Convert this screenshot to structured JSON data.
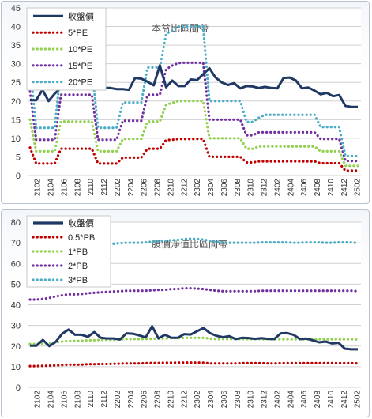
{
  "chart_data": [
    {
      "type": "line",
      "title": "本益比區間帶",
      "ylim": [
        0,
        45
      ],
      "yticks": [
        0,
        5,
        10,
        15,
        20,
        25,
        30,
        35,
        40,
        45
      ],
      "grid": true,
      "legend_placement": "top-left",
      "x_tick_labels": [
        "2102",
        "2104",
        "2106",
        "2108",
        "2110",
        "2112",
        "2202",
        "2204",
        "2206",
        "2208",
        "2210",
        "2212",
        "2302",
        "2304",
        "2306",
        "2308",
        "2310",
        "2312",
        "2402",
        "2404",
        "2406",
        "2408",
        "2410",
        "2412",
        "2502"
      ],
      "series": [
        {
          "name": "收盤價",
          "color": "#1f3864",
          "style": "solid",
          "values": [
            20.2,
            20.2,
            23,
            20,
            22,
            23.5,
            25.8,
            26.2,
            25.8,
            25.6,
            24.5,
            23.5,
            23.5,
            23.5,
            23.2,
            23.2,
            23,
            26.2,
            26,
            25.2,
            24.2,
            29.6,
            23.7,
            25.5,
            24,
            24,
            25.8,
            25.6,
            27.2,
            28.8,
            26.3,
            25,
            24.3,
            24.8,
            23.4,
            24,
            23.9,
            23.5,
            23.8,
            23.5,
            23.4,
            26.2,
            26.3,
            25.5,
            23.4,
            23.6,
            22.8,
            21.8,
            22.2,
            21.3,
            21.6,
            18.7,
            18.4,
            18.4
          ]
        },
        {
          "name": "5*PE",
          "color": "#c00000",
          "style": "dotted",
          "values": [
            7.5,
            3.2,
            3.2,
            3.2,
            3.2,
            7.2,
            7.2,
            7.2,
            7.2,
            7.2,
            7.2,
            3.2,
            3.2,
            3.2,
            3.2,
            4.8,
            4.8,
            4.8,
            4.8,
            7.2,
            7.2,
            7.2,
            9.5,
            9.6,
            9.8,
            9.8,
            9.8,
            9.8,
            9.8,
            5,
            5,
            5,
            5,
            5,
            5,
            3.5,
            3.5,
            3.8,
            3.8,
            3.8,
            3.8,
            3.8,
            3.8,
            3.8,
            3.8,
            3.8,
            3.8,
            3.3,
            3.3,
            3.3,
            3.3,
            1.3,
            1.3,
            1.3
          ]
        },
        {
          "name": "10*PE",
          "color": "#92d050",
          "style": "dotted",
          "values": [
            15,
            6.5,
            6.5,
            6.5,
            6.5,
            14.5,
            14.5,
            14.5,
            14.5,
            14.5,
            14.5,
            6.5,
            6.5,
            6.5,
            6.5,
            9.8,
            9.8,
            9.8,
            9.8,
            14.5,
            14.5,
            14.5,
            19,
            19.5,
            20,
            20,
            20,
            20,
            20,
            10,
            10,
            10,
            10,
            10,
            10,
            7.2,
            7.2,
            7.8,
            7.8,
            7.8,
            7.8,
            7.8,
            7.8,
            7.8,
            7.8,
            7.8,
            7.8,
            6.5,
            6.5,
            6.5,
            6.5,
            2.6,
            2.6,
            2.6
          ]
        },
        {
          "name": "15*PE",
          "color": "#7030a0",
          "style": "dotted",
          "values": [
            22.5,
            9.6,
            9.6,
            9.6,
            9.6,
            21.7,
            21.7,
            21.7,
            21.7,
            21.7,
            21.7,
            9.6,
            9.6,
            9.6,
            9.6,
            14.7,
            14.7,
            14.7,
            14.7,
            21.7,
            21.7,
            21.7,
            28.5,
            29.5,
            30.2,
            30.3,
            30.3,
            30.3,
            30.3,
            15,
            15,
            15,
            15,
            15,
            15,
            10.8,
            10.8,
            11.6,
            11.6,
            11.6,
            11.6,
            11.6,
            11.6,
            11.6,
            11.6,
            11.6,
            11.6,
            9.8,
            9.8,
            9.8,
            9.8,
            3.9,
            3.9,
            3.9
          ]
        },
        {
          "name": "20*PE",
          "color": "#4bacc6",
          "style": "dotted",
          "values": [
            30,
            12.8,
            12.8,
            12.8,
            12.8,
            29,
            29,
            29,
            29,
            29,
            29,
            12.8,
            12.8,
            12.8,
            12.8,
            19.6,
            19.6,
            19.6,
            19.6,
            29,
            29,
            29,
            38,
            39,
            40,
            40,
            40,
            40,
            40,
            20,
            20,
            20,
            20,
            20,
            20,
            14.4,
            14.4,
            15.5,
            16.3,
            16.3,
            16.3,
            16.3,
            16.3,
            16.3,
            16.3,
            16.3,
            16.3,
            13,
            13,
            13,
            13,
            5.2,
            5.2,
            5.2
          ]
        }
      ]
    },
    {
      "type": "line",
      "title": "股價淨值比區間帶",
      "ylim": [
        0,
        80
      ],
      "yticks": [
        0,
        10,
        20,
        30,
        40,
        50,
        60,
        70,
        80
      ],
      "grid": true,
      "legend_placement": "top-left",
      "x_tick_labels": [
        "2102",
        "2104",
        "2106",
        "2108",
        "2110",
        "2112",
        "2202",
        "2204",
        "2206",
        "2208",
        "2210",
        "2212",
        "2302",
        "2304",
        "2306",
        "2308",
        "2310",
        "2312",
        "2402",
        "2404",
        "2406",
        "2408",
        "2410",
        "2412",
        "2502"
      ],
      "series": [
        {
          "name": "收盤價",
          "color": "#1f3864",
          "style": "solid",
          "values": [
            20.2,
            20.2,
            23,
            20,
            22,
            26,
            28,
            25.5,
            25.5,
            24.5,
            26.8,
            24,
            23.7,
            23.7,
            23.2,
            26.2,
            26,
            25.2,
            24.2,
            29.6,
            23.7,
            25.5,
            24,
            24,
            25.8,
            25.6,
            27.2,
            28.8,
            26.3,
            25,
            24.3,
            24.8,
            23.4,
            24,
            23.9,
            23.5,
            23.8,
            23.5,
            23.4,
            26.2,
            26.3,
            25.5,
            23.4,
            23.6,
            22.8,
            21.8,
            22.2,
            21.3,
            21.6,
            18.7,
            18.4,
            18.4
          ]
        },
        {
          "name": "0.5*PB",
          "color": "#c00000",
          "style": "dotted",
          "values": [
            10.3,
            10.3,
            10.4,
            10.5,
            10.6,
            10.8,
            11,
            11,
            11,
            11.2,
            11.2,
            11.3,
            11.3,
            11.4,
            11.5,
            11.6,
            11.6,
            11.6,
            11.7,
            11.8,
            11.8,
            11.9,
            11.9,
            12,
            12,
            12,
            12,
            11.9,
            11.6,
            11.6,
            11.6,
            11.6,
            11.6,
            11.7,
            11.7,
            11.7,
            11.7,
            11.6,
            11.6,
            11.7,
            11.7,
            11.7,
            11.7,
            11.7,
            11.7,
            11.7,
            11.7,
            11.7,
            11.7,
            11.7,
            11.7,
            11.6
          ]
        },
        {
          "name": "1*PB",
          "color": "#92d050",
          "style": "dotted",
          "values": [
            21,
            21,
            21.2,
            21.4,
            21.8,
            22.2,
            22.5,
            22.5,
            22.5,
            22.8,
            22.8,
            23,
            23,
            23,
            23.2,
            23.4,
            23.4,
            23.4,
            23.4,
            23.5,
            23.6,
            23.6,
            23.8,
            23.8,
            24,
            24,
            24,
            24,
            23.6,
            23.4,
            23.4,
            23.4,
            23.4,
            23.4,
            23.4,
            23.4,
            23.4,
            23.3,
            23.3,
            23.3,
            23.3,
            23.3,
            23.3,
            23.3,
            23.3,
            23.3,
            23.3,
            23.3,
            23.3,
            23.3,
            23.3,
            23.2
          ]
        },
        {
          "name": "2*PB",
          "color": "#7030a0",
          "style": "dotted",
          "values": [
            42.5,
            42.5,
            42.8,
            43.3,
            44,
            44.6,
            45,
            45,
            45.2,
            45.6,
            45.8,
            46,
            46.2,
            46.4,
            46.6,
            46.8,
            46.8,
            46.8,
            46.8,
            47,
            47.2,
            47.2,
            47.6,
            47.6,
            48,
            48,
            47.8,
            47.6,
            47.2,
            46.8,
            46.6,
            46.6,
            46.6,
            46.6,
            46.6,
            46.6,
            46.8,
            46.8,
            46.8,
            46.8,
            46.8,
            46.8,
            46.8,
            46.8,
            46.8,
            46.8,
            46.8,
            46.8,
            46.8,
            46.8,
            46.8,
            46.6
          ]
        },
        {
          "name": "3*PB",
          "color": "#4bacc6",
          "style": "dotted",
          "values": [
            64,
            64.5,
            65,
            65.8,
            66.5,
            67.2,
            67.8,
            68,
            68.2,
            68.5,
            68.8,
            69,
            69.2,
            69.5,
            69.8,
            70,
            70,
            70,
            70.2,
            70.5,
            70.8,
            71,
            71.2,
            71.4,
            71.8,
            72,
            71.8,
            71.5,
            71,
            70.5,
            70.2,
            70,
            70,
            70,
            70,
            70,
            70.2,
            70.2,
            70.2,
            70.2,
            70.2,
            70,
            70,
            70.2,
            70.2,
            70.2,
            70,
            70,
            70.2,
            70.2,
            70.2,
            69.8
          ]
        }
      ]
    }
  ]
}
